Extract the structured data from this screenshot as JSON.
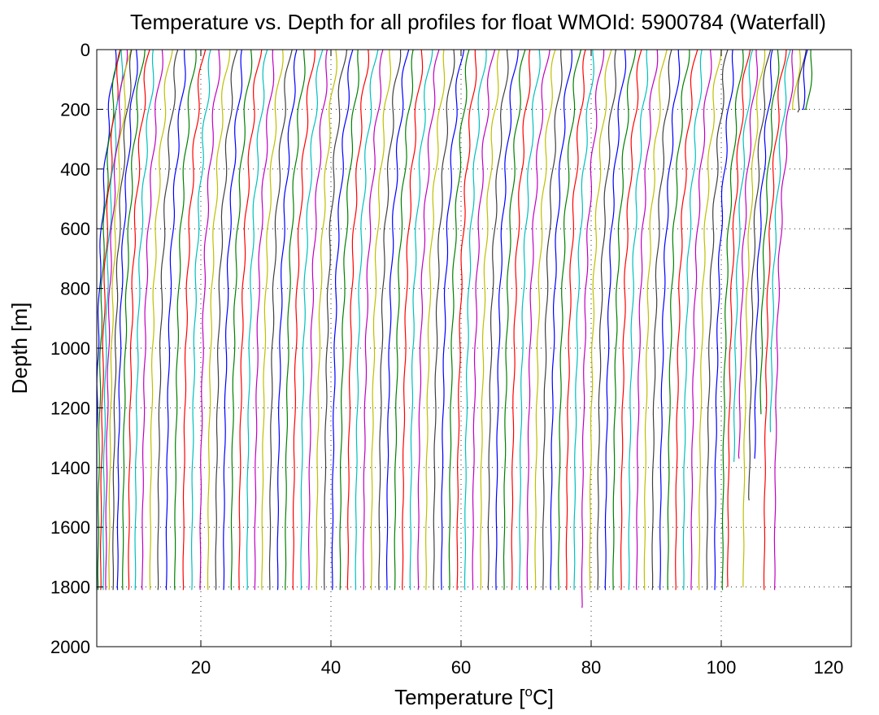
{
  "chart_data": {
    "type": "line",
    "title": "Temperature vs. Depth for all profiles for float WMOId: 5900784 (Waterfall)",
    "xlabel": "Temperature [",
    "xlabel_sup": "o",
    "xlabel_end": "C]",
    "ylabel": "Depth [m]",
    "xlim": [
      4,
      120
    ],
    "ylim": [
      0,
      2000
    ],
    "y_reversed": true,
    "grid": true,
    "x_ticks": [
      20,
      40,
      60,
      80,
      100,
      120
    ],
    "y_ticks": [
      0,
      200,
      400,
      600,
      800,
      1000,
      1200,
      1400,
      1600,
      1800,
      2000
    ],
    "colors": [
      "#0000ff",
      "#008000",
      "#ff0000",
      "#00bfbf",
      "#bf00bf",
      "#bfbf00",
      "#404040"
    ],
    "profile_count": 100,
    "profile_offset_step": 1,
    "profile_shape": {
      "depth": [
        0,
        100,
        200,
        300,
        400,
        500,
        600,
        700,
        800,
        1000,
        1200,
        1400,
        1600,
        1810
      ],
      "temperature_anomaly": [
        3.1,
        2.6,
        2.2,
        1.8,
        1.5,
        1.2,
        0.95,
        0.75,
        0.6,
        0.4,
        0.25,
        0.12,
        0.04,
        0.0
      ]
    },
    "profile_base_temperature": [
      3.8,
      4.2,
      4.6,
      5.0,
      5.4,
      5.9,
      6.5,
      7.2,
      8.0,
      8.9,
      9.9,
      11.0,
      12.2,
      13.4,
      14.7,
      16.0,
      17.3,
      18.6,
      19.9,
      21.1,
      22.3,
      23.5,
      24.7,
      25.9,
      27.1,
      28.3,
      29.4,
      30.6,
      31.8,
      33.0,
      34.2,
      35.4,
      36.6,
      37.8,
      39.0,
      40.2,
      41.4,
      42.6,
      43.8,
      45.0,
      46.2,
      47.4,
      48.6,
      49.8,
      51.0,
      52.2,
      53.4,
      54.6,
      55.8,
      57.0,
      58.2,
      59.4,
      60.6,
      61.8,
      63.0,
      64.2,
      65.4,
      66.6,
      67.8,
      69.0,
      70.2,
      71.4,
      72.6,
      73.8,
      75.0,
      76.2,
      77.4,
      78.6,
      79.8,
      81.0,
      82.2,
      83.4,
      84.6,
      85.8,
      87.0,
      88.2,
      89.4,
      90.6,
      91.8,
      93.0,
      94.2,
      95.4,
      96.6,
      97.8,
      99.0,
      100.2,
      101.0,
      101.8,
      102.6,
      103.4,
      104.2,
      105.0,
      105.8,
      106.6,
      107.4,
      108.2,
      109.0,
      109.6,
      110.2,
      111.0
    ],
    "profile_max_depth": [
      1810,
      1810,
      1810,
      1810,
      1810,
      1810,
      1810,
      1810,
      1810,
      1810,
      1810,
      1810,
      1810,
      1810,
      1810,
      1810,
      1810,
      1810,
      1810,
      1810,
      1810,
      1810,
      1810,
      1810,
      1810,
      1810,
      1810,
      1810,
      1810,
      1810,
      1810,
      1810,
      1810,
      1810,
      1810,
      1810,
      1810,
      1810,
      1810,
      1810,
      1810,
      1810,
      1810,
      1810,
      1810,
      1810,
      1810,
      1810,
      1810,
      1810,
      1810,
      1810,
      1810,
      1810,
      1810,
      1810,
      1810,
      1810,
      1810,
      1810,
      1810,
      1810,
      1810,
      1810,
      1810,
      1810,
      1810,
      1870,
      1810,
      1810,
      1810,
      1810,
      1810,
      1810,
      1810,
      1810,
      1810,
      1810,
      1810,
      1810,
      1810,
      1810,
      1810,
      1810,
      1810,
      1810,
      1800,
      1380,
      1370,
      1800,
      1510,
      1370,
      1220,
      1810,
      1280,
      1810,
      200,
      210,
      200,
      200
    ]
  }
}
